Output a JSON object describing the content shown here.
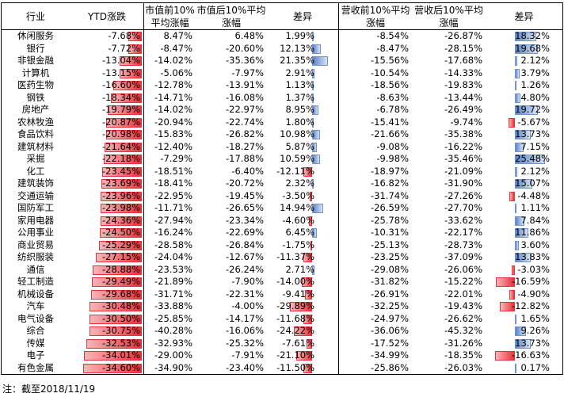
{
  "headers": {
    "industry": "行业",
    "ytd": "YTD涨跌",
    "mc_top": "市值前10%\n平均涨幅",
    "mc_bottom": "市值后10%平均\n涨幅",
    "mc_diff": "差异",
    "rev_top": "营收前10%平均\n涨幅",
    "rev_bottom": "营收后10%平均\n涨幅",
    "rev_diff": "差异"
  },
  "colors": {
    "neg_bar": "#e8313a",
    "pos_bar": "#5b85c8"
  },
  "chart_data": {
    "type": "table",
    "bar_scales": {
      "ytd_min": -40,
      "mc_diff_range": [
        -35,
        35
      ],
      "rev_diff_range": [
        -40,
        40
      ]
    },
    "rows": [
      {
        "name": "休闲服务",
        "ytd": -7.68,
        "ytd_text": "-7.68%",
        "mc_top": "8.47%",
        "mc_bottom": "6.48%",
        "mc_diff": 1.99,
        "mc_diff_text": "1.99%",
        "rev_top": "-8.54%",
        "rev_bottom": "-26.87%",
        "rev_diff": 18.32,
        "rev_diff_text": "18.32%"
      },
      {
        "name": "银行",
        "ytd": -7.72,
        "ytd_text": "-7.72%",
        "mc_top": "-8.47%",
        "mc_bottom": "-20.60%",
        "mc_diff": 12.13,
        "mc_diff_text": "12.13%",
        "rev_top": "-8.47%",
        "rev_bottom": "-28.15%",
        "rev_diff": 19.68,
        "rev_diff_text": "19.68%"
      },
      {
        "name": "非银金融",
        "ytd": -13.04,
        "ytd_text": "-13.04%",
        "mc_top": "-14.02%",
        "mc_bottom": "-35.36%",
        "mc_diff": 21.35,
        "mc_diff_text": "21.35%",
        "rev_top": "-15.56%",
        "rev_bottom": "-17.68%",
        "rev_diff": 2.12,
        "rev_diff_text": "2.12%"
      },
      {
        "name": "计算机",
        "ytd": -13.15,
        "ytd_text": "-13.15%",
        "mc_top": "-5.06%",
        "mc_bottom": "-7.97%",
        "mc_diff": 2.91,
        "mc_diff_text": "2.91%",
        "rev_top": "-10.54%",
        "rev_bottom": "-14.33%",
        "rev_diff": 3.79,
        "rev_diff_text": "3.79%"
      },
      {
        "name": "医药生物",
        "ytd": -16.6,
        "ytd_text": "-16.60%",
        "mc_top": "-12.78%",
        "mc_bottom": "-13.91%",
        "mc_diff": 1.13,
        "mc_diff_text": "1.13%",
        "rev_top": "-18.56%",
        "rev_bottom": "-19.83%",
        "rev_diff": 1.26,
        "rev_diff_text": "1.26%"
      },
      {
        "name": "钢铁",
        "ytd": -18.34,
        "ytd_text": "-18.34%",
        "mc_top": "-14.71%",
        "mc_bottom": "-16.08%",
        "mc_diff": 1.37,
        "mc_diff_text": "1.37%",
        "rev_top": "-8.63%",
        "rev_bottom": "-13.44%",
        "rev_diff": 4.8,
        "rev_diff_text": "4.80%"
      },
      {
        "name": "房地产",
        "ytd": -19.79,
        "ytd_text": "-19.79%",
        "mc_top": "-14.02%",
        "mc_bottom": "-22.97%",
        "mc_diff": 8.95,
        "mc_diff_text": "8.95%",
        "rev_top": "-6.78%",
        "rev_bottom": "-26.49%",
        "rev_diff": 19.72,
        "rev_diff_text": "19.72%"
      },
      {
        "name": "农林牧渔",
        "ytd": -20.87,
        "ytd_text": "-20.87%",
        "mc_top": "-20.94%",
        "mc_bottom": "-22.74%",
        "mc_diff": 1.8,
        "mc_diff_text": "1.80%",
        "rev_top": "-15.41%",
        "rev_bottom": "-9.74%",
        "rev_diff": -5.67,
        "rev_diff_text": "-5.67%"
      },
      {
        "name": "食品饮料",
        "ytd": -20.98,
        "ytd_text": "-20.98%",
        "mc_top": "-15.83%",
        "mc_bottom": "-26.82%",
        "mc_diff": 10.98,
        "mc_diff_text": "10.98%",
        "rev_top": "-21.66%",
        "rev_bottom": "-35.38%",
        "rev_diff": 13.73,
        "rev_diff_text": "13.73%"
      },
      {
        "name": "建筑材料",
        "ytd": -21.64,
        "ytd_text": "-21.64%",
        "mc_top": "-12.40%",
        "mc_bottom": "-18.27%",
        "mc_diff": 5.87,
        "mc_diff_text": "5.87%",
        "rev_top": "-9.08%",
        "rev_bottom": "-16.22%",
        "rev_diff": 7.15,
        "rev_diff_text": "7.15%"
      },
      {
        "name": "采掘",
        "ytd": -22.18,
        "ytd_text": "-22.18%",
        "mc_top": "-7.29%",
        "mc_bottom": "-17.88%",
        "mc_diff": 10.59,
        "mc_diff_text": "10.59%",
        "rev_top": "-9.98%",
        "rev_bottom": "-35.46%",
        "rev_diff": 25.48,
        "rev_diff_text": "25.48%"
      },
      {
        "name": "化工",
        "ytd": -23.45,
        "ytd_text": "-23.45%",
        "mc_top": "-18.51%",
        "mc_bottom": "-6.40%",
        "mc_diff": -12.11,
        "mc_diff_text": "-12.11%",
        "rev_top": "-18.97%",
        "rev_bottom": "-21.09%",
        "rev_diff": 2.12,
        "rev_diff_text": "2.12%"
      },
      {
        "name": "建筑装饰",
        "ytd": -23.69,
        "ytd_text": "-23.69%",
        "mc_top": "-18.41%",
        "mc_bottom": "-20.72%",
        "mc_diff": 2.32,
        "mc_diff_text": "2.32%",
        "rev_top": "-16.82%",
        "rev_bottom": "-31.90%",
        "rev_diff": 15.07,
        "rev_diff_text": "15.07%"
      },
      {
        "name": "交通运输",
        "ytd": -23.96,
        "ytd_text": "-23.96%",
        "mc_top": "-22.95%",
        "mc_bottom": "-19.45%",
        "mc_diff": -3.5,
        "mc_diff_text": "-3.50%",
        "rev_top": "-31.74%",
        "rev_bottom": "-27.26%",
        "rev_diff": -4.48,
        "rev_diff_text": "-4.48%"
      },
      {
        "name": "国防军工",
        "ytd": -23.98,
        "ytd_text": "-23.98%",
        "mc_top": "-11.71%",
        "mc_bottom": "-26.65%",
        "mc_diff": 14.94,
        "mc_diff_text": "14.94%",
        "rev_top": "-26.59%",
        "rev_bottom": "-27.70%",
        "rev_diff": 1.11,
        "rev_diff_text": "1.11%"
      },
      {
        "name": "家用电器",
        "ytd": -24.36,
        "ytd_text": "-24.36%",
        "mc_top": "-27.94%",
        "mc_bottom": "-23.34%",
        "mc_diff": -4.6,
        "mc_diff_text": "-4.60%",
        "rev_top": "-25.78%",
        "rev_bottom": "-33.62%",
        "rev_diff": 7.84,
        "rev_diff_text": "7.84%"
      },
      {
        "name": "公用事业",
        "ytd": -24.5,
        "ytd_text": "-24.50%",
        "mc_top": "-16.24%",
        "mc_bottom": "-22.69%",
        "mc_diff": 6.45,
        "mc_diff_text": "6.45%",
        "rev_top": "-10.31%",
        "rev_bottom": "-22.17%",
        "rev_diff": 11.86,
        "rev_diff_text": "11.86%"
      },
      {
        "name": "商业贸易",
        "ytd": -25.29,
        "ytd_text": "-25.29%",
        "mc_top": "-28.58%",
        "mc_bottom": "-26.84%",
        "mc_diff": -1.75,
        "mc_diff_text": "-1.75%",
        "rev_top": "-25.13%",
        "rev_bottom": "-28.73%",
        "rev_diff": 3.6,
        "rev_diff_text": "3.60%"
      },
      {
        "name": "纺织服装",
        "ytd": -27.15,
        "ytd_text": "-27.15%",
        "mc_top": "-24.04%",
        "mc_bottom": "-12.67%",
        "mc_diff": -11.37,
        "mc_diff_text": "-11.37%",
        "rev_top": "-23.25%",
        "rev_bottom": "-37.09%",
        "rev_diff": 13.83,
        "rev_diff_text": "13.83%"
      },
      {
        "name": "通信",
        "ytd": -28.88,
        "ytd_text": "-28.88%",
        "mc_top": "-23.53%",
        "mc_bottom": "-26.24%",
        "mc_diff": 2.71,
        "mc_diff_text": "2.71%",
        "rev_top": "-29.08%",
        "rev_bottom": "-26.06%",
        "rev_diff": -3.03,
        "rev_diff_text": "-3.03%"
      },
      {
        "name": "轻工制造",
        "ytd": -29.49,
        "ytd_text": "-29.49%",
        "mc_top": "-21.89%",
        "mc_bottom": "-7.90%",
        "mc_diff": -14.0,
        "mc_diff_text": "-14.00%",
        "rev_top": "-31.82%",
        "rev_bottom": "-15.22%",
        "rev_diff": -16.59,
        "rev_diff_text": "-16.59%"
      },
      {
        "name": "机械设备",
        "ytd": -29.68,
        "ytd_text": "-29.68%",
        "mc_top": "-31.71%",
        "mc_bottom": "-22.31%",
        "mc_diff": -9.41,
        "mc_diff_text": "-9.41%",
        "rev_top": "-26.91%",
        "rev_bottom": "-22.01%",
        "rev_diff": -4.9,
        "rev_diff_text": "-4.90%"
      },
      {
        "name": "汽车",
        "ytd": -30.48,
        "ytd_text": "-30.48%",
        "mc_top": "-33.88%",
        "mc_bottom": "-4.00%",
        "mc_diff": -29.89,
        "mc_diff_text": "-29.89%",
        "rev_top": "-32.25%",
        "rev_bottom": "-19.43%",
        "rev_diff": -12.82,
        "rev_diff_text": "-12.82%"
      },
      {
        "name": "电气设备",
        "ytd": -30.5,
        "ytd_text": "-30.50%",
        "mc_top": "-25.85%",
        "mc_bottom": "-14.17%",
        "mc_diff": -11.68,
        "mc_diff_text": "-11.68%",
        "rev_top": "-24.97%",
        "rev_bottom": "-26.62%",
        "rev_diff": 1.65,
        "rev_diff_text": "1.65%"
      },
      {
        "name": "综合",
        "ytd": -30.75,
        "ytd_text": "-30.75%",
        "mc_top": "-40.28%",
        "mc_bottom": "-16.06%",
        "mc_diff": -24.22,
        "mc_diff_text": "-24.22%",
        "rev_top": "-36.06%",
        "rev_bottom": "-45.32%",
        "rev_diff": 9.26,
        "rev_diff_text": "9.26%"
      },
      {
        "name": "传媒",
        "ytd": -32.53,
        "ytd_text": "-32.53%",
        "mc_top": "-32.93%",
        "mc_bottom": "-25.32%",
        "mc_diff": -7.61,
        "mc_diff_text": "-7.61%",
        "rev_top": "-17.52%",
        "rev_bottom": "-31.26%",
        "rev_diff": 13.73,
        "rev_diff_text": "13.73%"
      },
      {
        "name": "电子",
        "ytd": -34.01,
        "ytd_text": "-34.01%",
        "mc_top": "-29.00%",
        "mc_bottom": "-7.91%",
        "mc_diff": -21.1,
        "mc_diff_text": "-21.10%",
        "rev_top": "-34.99%",
        "rev_bottom": "-18.35%",
        "rev_diff": -16.63,
        "rev_diff_text": "-16.63%"
      },
      {
        "name": "有色金属",
        "ytd": -34.6,
        "ytd_text": "-34.60%",
        "mc_top": "-34.90%",
        "mc_bottom": "-23.40%",
        "mc_diff": -11.5,
        "mc_diff_text": "-11.50%",
        "rev_top": "-25.86%",
        "rev_bottom": "-26.03%",
        "rev_diff": 0.17,
        "rev_diff_text": "0.17%"
      }
    ]
  },
  "footnote": "注：截至2018/11/19"
}
